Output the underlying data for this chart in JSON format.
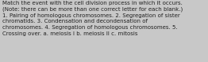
{
  "text_lines": [
    "Match the event with the cell division process in which it occurs.",
    "(Note: there can be more than one correct letter for each blank.)",
    "1. Pairing of homologous chromosomes. 2. Segregation of sister",
    "chromatids. 3. Condensation and decondensation of",
    "chromosomes. 4. Segregation of homologous chromosomes. 5.",
    "Crossing over. a. meiosis I b. meiosis II c. mitosis"
  ],
  "background_color": "#c8c8c8",
  "text_color": "#222222",
  "font_size": 5.05,
  "fig_width": 2.62,
  "fig_height": 0.79,
  "dpi": 100
}
